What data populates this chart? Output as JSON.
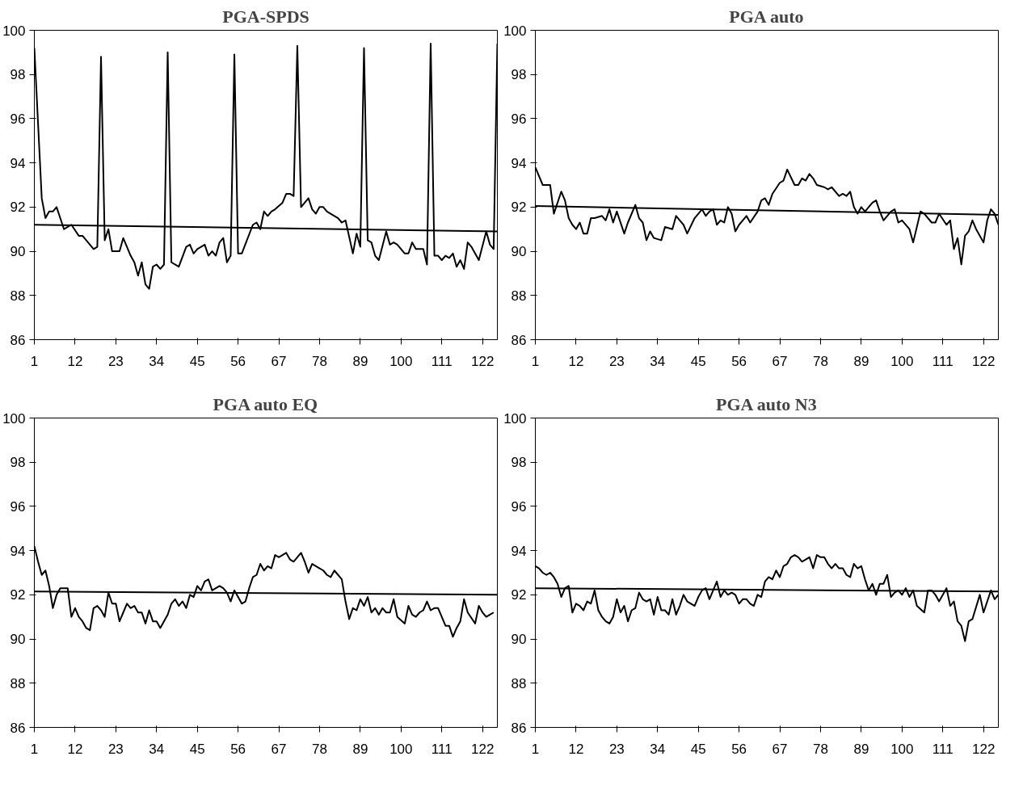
{
  "chart_data": [
    {
      "type": "line",
      "title": "PGA-SPDS",
      "xlim": [
        1,
        126
      ],
      "ylim": [
        86,
        100
      ],
      "xticks": [
        1,
        12,
        23,
        34,
        45,
        56,
        67,
        78,
        89,
        100,
        111,
        122
      ],
      "yticks": [
        86,
        88,
        90,
        92,
        94,
        96,
        98,
        100
      ],
      "grid": false,
      "series": [
        {
          "color": "#000000",
          "x": [
            1,
            3,
            4,
            5,
            6,
            7,
            8,
            9,
            11,
            13,
            14,
            16,
            17,
            18,
            19,
            20,
            21,
            22,
            24,
            25,
            27,
            28,
            29,
            30,
            31,
            32,
            33,
            34,
            35,
            36,
            37,
            38,
            40,
            42,
            43,
            44,
            45,
            47,
            48,
            49,
            50,
            51,
            52,
            53,
            54,
            55,
            56,
            57,
            60,
            61,
            62,
            63,
            64,
            65,
            66,
            68,
            69,
            70,
            71,
            72,
            73,
            75,
            76,
            77,
            78,
            79,
            80,
            82,
            83,
            84,
            85,
            87,
            88,
            89,
            90,
            91,
            92,
            93,
            94,
            96,
            97,
            98,
            99,
            101,
            102,
            103,
            104,
            106,
            107,
            108,
            109,
            110,
            111,
            112,
            113,
            114,
            115,
            116,
            117,
            118,
            119,
            121,
            123,
            124,
            125,
            126
          ],
          "values": [
            99.2,
            92.4,
            91.5,
            91.8,
            91.8,
            92,
            91.5,
            91,
            91.2,
            90.7,
            90.7,
            90.3,
            90.1,
            90.2,
            98.8,
            90.5,
            91,
            90,
            90,
            90.6,
            89.8,
            89.5,
            88.9,
            89.5,
            88.5,
            88.3,
            89.3,
            89.4,
            89.2,
            89.4,
            99,
            89.5,
            89.3,
            90.2,
            90.3,
            89.9,
            90.1,
            90.3,
            89.8,
            90,
            89.8,
            90.4,
            90.6,
            89.5,
            89.8,
            98.9,
            89.9,
            89.9,
            91.2,
            91.3,
            91,
            91.8,
            91.6,
            91.8,
            91.9,
            92.2,
            92.6,
            92.6,
            92.5,
            99.3,
            92,
            92.4,
            91.9,
            91.7,
            92,
            92,
            91.8,
            91.6,
            91.5,
            91.3,
            91.4,
            89.9,
            90.8,
            90.2,
            99.2,
            90.5,
            90.4,
            89.8,
            89.6,
            90.9,
            90.3,
            90.4,
            90.3,
            89.9,
            89.9,
            90.4,
            90.1,
            90.1,
            89.4,
            99.4,
            89.8,
            89.8,
            89.6,
            89.8,
            89.7,
            89.9,
            89.3,
            89.6,
            89.2,
            90.4,
            90.2,
            89.6,
            90.9,
            90.3,
            90.1,
            99.4
          ]
        },
        {
          "type": "line",
          "color": "#000000",
          "x": [
            1,
            126
          ],
          "values": [
            91.2,
            90.9
          ]
        }
      ]
    },
    {
      "type": "line",
      "title": "PGA auto",
      "xlim": [
        1,
        126
      ],
      "ylim": [
        86,
        100
      ],
      "xticks": [
        1,
        12,
        23,
        34,
        45,
        56,
        67,
        78,
        89,
        100,
        111,
        122
      ],
      "yticks": [
        86,
        88,
        90,
        92,
        94,
        96,
        98,
        100
      ],
      "grid": false,
      "series": [
        {
          "color": "#000000",
          "x": [
            1,
            3,
            5,
            6,
            8,
            9,
            10,
            11,
            12,
            13,
            14,
            15,
            16,
            17,
            19,
            20,
            21,
            22,
            23,
            25,
            26,
            28,
            29,
            30,
            31,
            32,
            33,
            35,
            36,
            38,
            39,
            40,
            41,
            42,
            44,
            46,
            47,
            48,
            49,
            50,
            51,
            52,
            53,
            54,
            55,
            56,
            57,
            58,
            59,
            61,
            62,
            63,
            64,
            65,
            67,
            68,
            69,
            71,
            72,
            73,
            74,
            75,
            76,
            77,
            79,
            80,
            81,
            83,
            84,
            85,
            86,
            87,
            88,
            89,
            90,
            92,
            93,
            94,
            95,
            97,
            98,
            99,
            100,
            102,
            103,
            105,
            106,
            108,
            109,
            110,
            112,
            113,
            114,
            115,
            116,
            117,
            118,
            119,
            120,
            122,
            123,
            124,
            125,
            126
          ],
          "values": [
            93.8,
            93,
            93,
            91.7,
            92.7,
            92.3,
            91.5,
            91.2,
            91,
            91.3,
            90.8,
            90.8,
            91.5,
            91.5,
            91.6,
            91.4,
            91.9,
            91.3,
            91.8,
            90.8,
            91.3,
            92.1,
            91.5,
            91.3,
            90.5,
            90.9,
            90.6,
            90.5,
            91.1,
            91,
            91.6,
            91.4,
            91.2,
            90.8,
            91.5,
            91.9,
            91.6,
            91.8,
            91.9,
            91.2,
            91.4,
            91.3,
            92,
            91.7,
            90.9,
            91.2,
            91.4,
            91.6,
            91.3,
            91.8,
            92.3,
            92.4,
            92.1,
            92.6,
            93.1,
            93.2,
            93.7,
            93,
            93,
            93.3,
            93.2,
            93.5,
            93.3,
            93,
            92.9,
            92.8,
            92.9,
            92.5,
            92.6,
            92.5,
            92.7,
            92,
            91.7,
            92,
            91.8,
            92.2,
            92.3,
            91.8,
            91.4,
            91.8,
            91.9,
            91.3,
            91.4,
            91,
            90.4,
            91.8,
            91.7,
            91.3,
            91.3,
            91.7,
            91.2,
            91.4,
            90.1,
            90.6,
            89.4,
            90.7,
            90.9,
            91.4,
            91,
            90.4,
            91.4,
            91.9,
            91.7,
            91.2
          ]
        },
        {
          "type": "line",
          "color": "#000000",
          "x": [
            1,
            126
          ],
          "values": [
            92.05,
            91.65
          ]
        }
      ]
    },
    {
      "type": "line",
      "title": "PGA auto EQ",
      "xlim": [
        1,
        126
      ],
      "ylim": [
        86,
        100
      ],
      "xticks": [
        1,
        12,
        23,
        34,
        45,
        56,
        67,
        78,
        89,
        100,
        111,
        122
      ],
      "yticks": [
        86,
        88,
        90,
        92,
        94,
        96,
        98,
        100
      ],
      "grid": false,
      "series": [
        {
          "color": "#000000",
          "x": [
            1,
            2,
            3,
            4,
            5,
            6,
            7,
            8,
            9,
            10,
            11,
            12,
            13,
            14,
            15,
            16,
            17,
            18,
            19,
            20,
            21,
            22,
            23,
            24,
            25,
            26,
            27,
            28,
            29,
            30,
            31,
            32,
            33,
            34,
            35,
            36,
            37,
            38,
            39,
            40,
            41,
            42,
            43,
            44,
            45,
            46,
            47,
            48,
            49,
            50,
            51,
            52,
            53,
            54,
            55,
            56,
            57,
            58,
            59,
            60,
            61,
            62,
            63,
            64,
            65,
            66,
            67,
            68,
            69,
            70,
            71,
            72,
            73,
            74,
            75,
            76,
            77,
            78,
            79,
            80,
            81,
            82,
            83,
            84,
            85,
            86,
            87,
            88,
            89,
            90,
            91,
            92,
            93,
            94,
            95,
            96,
            97,
            98,
            99,
            101,
            102,
            103,
            104,
            105,
            106,
            107,
            108,
            109,
            110,
            112,
            113,
            114,
            115,
            116,
            117,
            118,
            120,
            121,
            122,
            123,
            124,
            125
          ],
          "values": [
            94.2,
            93.5,
            92.9,
            93.1,
            92.4,
            91.4,
            92,
            92.3,
            92.3,
            92.3,
            91,
            91.4,
            91,
            90.8,
            90.5,
            90.4,
            91.4,
            91.5,
            91.3,
            91,
            92.1,
            91.6,
            91.6,
            90.8,
            91.2,
            91.6,
            91.4,
            91.5,
            91.2,
            91.2,
            90.7,
            91.3,
            90.8,
            90.8,
            90.5,
            90.8,
            91.1,
            91.6,
            91.8,
            91.5,
            91.7,
            91.4,
            92,
            91.9,
            92.4,
            92.2,
            92.6,
            92.7,
            92.2,
            92.3,
            92.4,
            92.3,
            92.1,
            91.7,
            92.2,
            91.9,
            91.6,
            91.7,
            92.3,
            92.8,
            92.9,
            93.4,
            93.1,
            93.3,
            93.2,
            93.8,
            93.7,
            93.8,
            93.9,
            93.6,
            93.5,
            93.7,
            93.9,
            93.5,
            93,
            93.4,
            93.3,
            93.2,
            93.1,
            92.9,
            92.8,
            93.1,
            92.9,
            92.7,
            91.7,
            90.9,
            91.4,
            91.3,
            91.8,
            91.5,
            91.9,
            91.2,
            91.4,
            91.1,
            91.4,
            91.2,
            91.2,
            91.8,
            91,
            90.7,
            91.5,
            91.1,
            91,
            91.2,
            91.3,
            91.7,
            91.3,
            91.4,
            91.4,
            90.6,
            90.6,
            90.1,
            90.5,
            90.8,
            91.8,
            91.2,
            90.7,
            91.5,
            91.2,
            91,
            91.1,
            91.2
          ]
        },
        {
          "type": "line",
          "color": "#000000",
          "x": [
            1,
            126
          ],
          "values": [
            92.15,
            92.0
          ]
        }
      ]
    },
    {
      "type": "line",
      "title": "PGA auto N3",
      "xlim": [
        1,
        126
      ],
      "ylim": [
        86,
        100
      ],
      "xticks": [
        1,
        12,
        23,
        34,
        45,
        56,
        67,
        78,
        89,
        100,
        111,
        122
      ],
      "yticks": [
        86,
        88,
        90,
        92,
        94,
        96,
        98,
        100
      ],
      "grid": false,
      "series": [
        {
          "color": "#000000",
          "x": [
            1,
            2,
            3,
            4,
            5,
            6,
            7,
            8,
            9,
            10,
            11,
            12,
            13,
            14,
            15,
            16,
            17,
            18,
            19,
            20,
            21,
            22,
            23,
            24,
            25,
            26,
            27,
            28,
            29,
            30,
            31,
            32,
            33,
            34,
            35,
            36,
            37,
            38,
            39,
            40,
            41,
            42,
            43,
            44,
            45,
            46,
            47,
            48,
            49,
            50,
            51,
            52,
            53,
            54,
            55,
            56,
            57,
            58,
            59,
            60,
            61,
            62,
            63,
            64,
            65,
            66,
            67,
            68,
            69,
            70,
            71,
            72,
            73,
            74,
            75,
            76,
            77,
            78,
            79,
            80,
            81,
            82,
            83,
            84,
            85,
            86,
            87,
            88,
            89,
            90,
            91,
            92,
            93,
            94,
            95,
            96,
            97,
            98,
            99,
            100,
            101,
            102,
            103,
            104,
            106,
            107,
            108,
            109,
            110,
            112,
            113,
            114,
            115,
            116,
            117,
            118,
            119,
            121,
            122,
            124,
            125,
            126
          ],
          "values": [
            93.3,
            93.2,
            93,
            92.9,
            93,
            92.8,
            92.5,
            91.9,
            92.3,
            92.4,
            91.2,
            91.6,
            91.5,
            91.3,
            91.7,
            91.6,
            92.2,
            91.3,
            91,
            90.8,
            90.7,
            91,
            91.8,
            91.2,
            91.5,
            90.8,
            91.3,
            91.4,
            92.1,
            91.8,
            91.7,
            91.8,
            91.1,
            91.9,
            91.3,
            91.3,
            91.1,
            91.8,
            91.1,
            91.5,
            92,
            91.7,
            91.6,
            91.5,
            91.9,
            92.2,
            92.3,
            91.8,
            92.2,
            92.6,
            91.9,
            92.2,
            92,
            92.1,
            92,
            91.6,
            91.8,
            91.8,
            91.6,
            91.5,
            92,
            91.9,
            92.6,
            92.8,
            92.7,
            93.1,
            92.8,
            93.3,
            93.4,
            93.7,
            93.8,
            93.7,
            93.5,
            93.6,
            93.7,
            93.2,
            93.8,
            93.7,
            93.7,
            93.4,
            93.2,
            93.4,
            93.2,
            93.2,
            92.9,
            92.8,
            93.4,
            93.2,
            93.3,
            92.7,
            92.2,
            92.5,
            92,
            92.5,
            92.5,
            92.9,
            91.9,
            92.1,
            92.2,
            92,
            92.3,
            91.9,
            92.2,
            91.5,
            91.2,
            92.2,
            92.2,
            92,
            91.7,
            92.3,
            91.5,
            91.7,
            90.8,
            90.6,
            89.9,
            90.8,
            90.9,
            92,
            91.2,
            92.2,
            91.8,
            92
          ]
        },
        {
          "type": "line",
          "color": "#000000",
          "x": [
            1,
            126
          ],
          "values": [
            92.3,
            92.15
          ]
        }
      ]
    }
  ]
}
